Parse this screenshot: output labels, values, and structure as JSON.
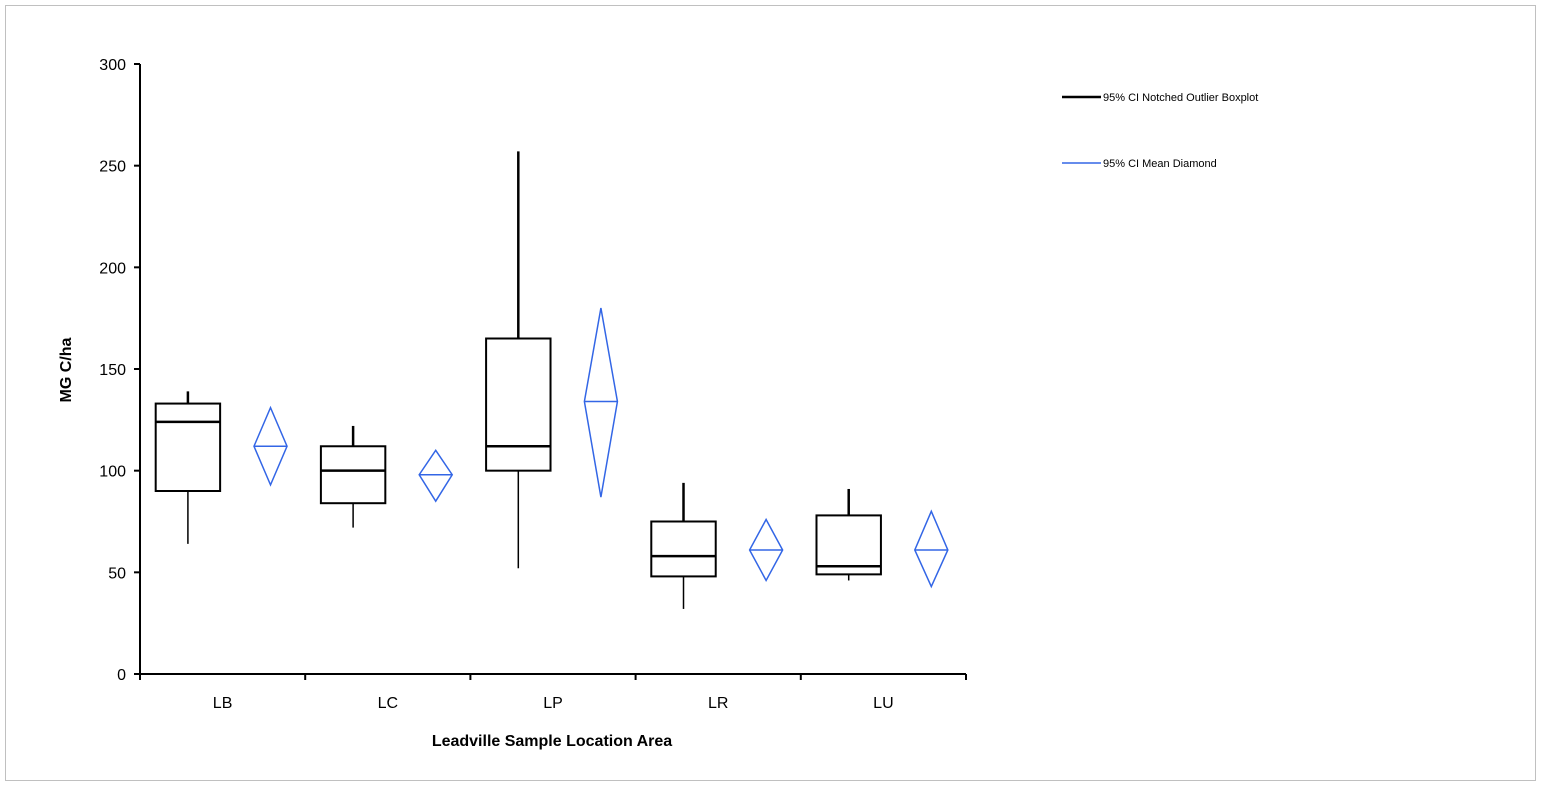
{
  "chart_data": {
    "type": "boxplot",
    "title": "",
    "xlabel": "Leadville Sample Location Area",
    "ylabel": "MG C/ha",
    "ylim": [
      0,
      300
    ],
    "yticks": [
      0,
      50,
      100,
      150,
      200,
      250,
      300
    ],
    "categories": [
      "LB",
      "LC",
      "LP",
      "LR",
      "LU"
    ],
    "boxplots": [
      {
        "category": "LB",
        "whisker_low": 64,
        "q1": 90,
        "median": 124,
        "q3": 133,
        "whisker_high": 139
      },
      {
        "category": "LC",
        "whisker_low": 72,
        "q1": 84,
        "median": 100,
        "q3": 112,
        "whisker_high": 122
      },
      {
        "category": "LP",
        "whisker_low": 52,
        "q1": 100,
        "median": 112,
        "q3": 165,
        "whisker_high": 257
      },
      {
        "category": "LR",
        "whisker_low": 32,
        "q1": 48,
        "median": 58,
        "q3": 75,
        "whisker_high": 94
      },
      {
        "category": "LU",
        "whisker_low": 46,
        "q1": 49,
        "median": 53,
        "q3": 78,
        "whisker_high": 91
      }
    ],
    "mean_diamonds": [
      {
        "category": "LB",
        "ci_low": 93,
        "mean": 112,
        "ci_high": 131
      },
      {
        "category": "LC",
        "ci_low": 85,
        "mean": 98,
        "ci_high": 110
      },
      {
        "category": "LP",
        "ci_low": 87,
        "mean": 134,
        "ci_high": 180
      },
      {
        "category": "LR",
        "ci_low": 46,
        "mean": 61,
        "ci_high": 76
      },
      {
        "category": "LU",
        "ci_low": 43,
        "mean": 61,
        "ci_high": 80
      }
    ],
    "legend": {
      "placement": "top-right",
      "entries": [
        {
          "label": "95% CI Notched Outlier Boxplot",
          "color": "#000000"
        },
        {
          "label": "95% CI Mean Diamond",
          "color": "#3366e6"
        }
      ]
    },
    "colors": {
      "boxplot": "#000000",
      "diamond": "#3366e6"
    }
  }
}
